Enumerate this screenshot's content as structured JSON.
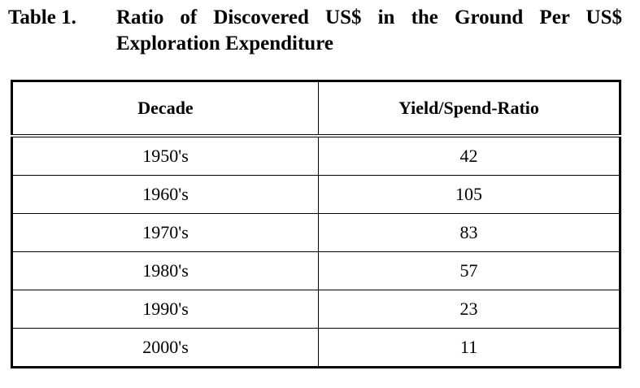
{
  "caption": {
    "label": "Table 1.",
    "title_line1": "Ratio of Discovered US$ in the Ground Per US$",
    "title_line2": "Exploration Expenditure"
  },
  "table": {
    "headers": [
      "Decade",
      "Yield/Spend-Ratio"
    ],
    "rows": [
      [
        "1950's",
        "42"
      ],
      [
        "1960's",
        "105"
      ],
      [
        "1970's",
        "83"
      ],
      [
        "1980's",
        "57"
      ],
      [
        "1990's",
        "23"
      ],
      [
        "2000's",
        "11"
      ]
    ]
  }
}
